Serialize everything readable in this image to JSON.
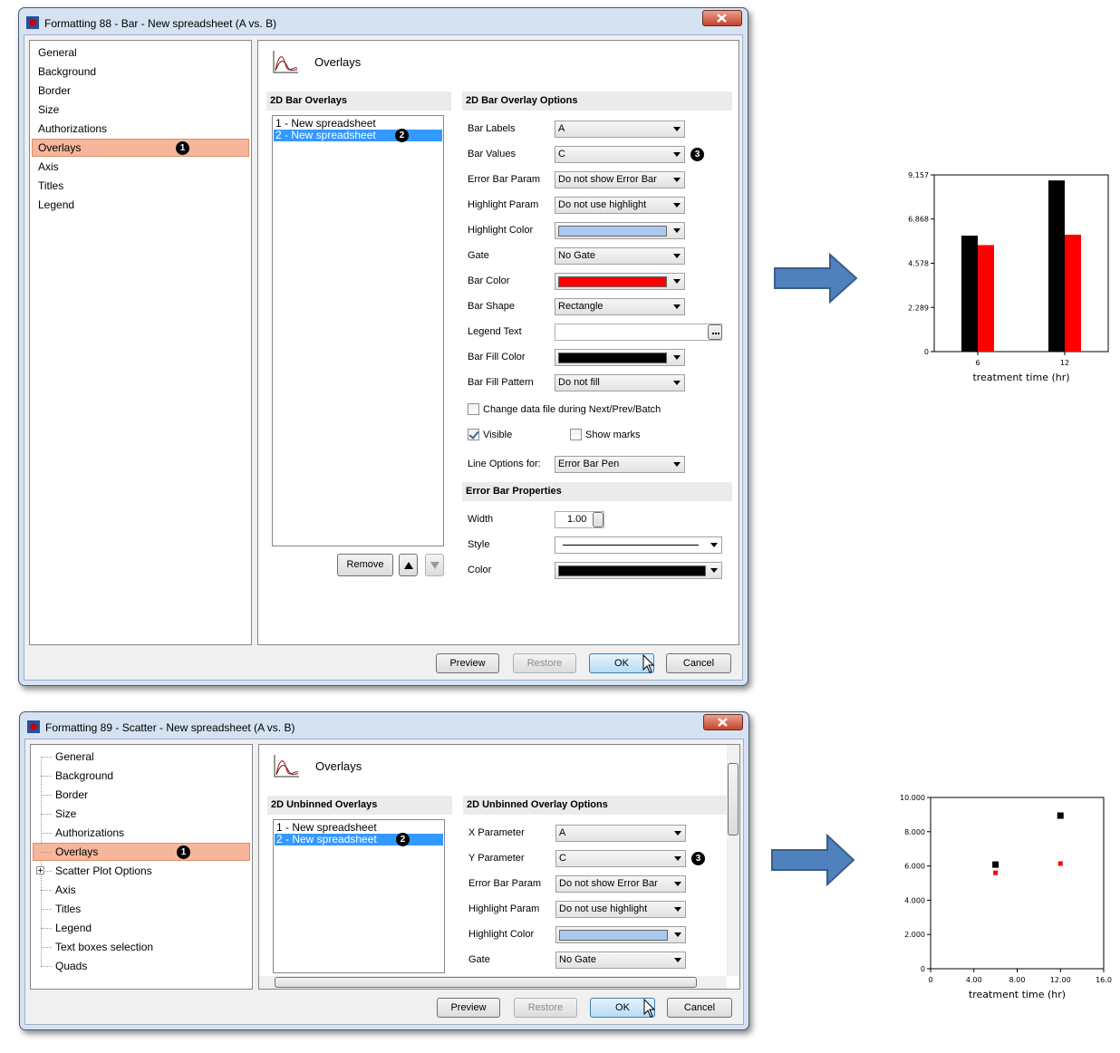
{
  "dialogs": [
    {
      "title": "Formatting 88 - Bar - New spreadsheet (A vs. B)",
      "tree": false,
      "nav": [
        "General",
        "Background",
        "Border",
        "Size",
        "Authorizations",
        "Overlays",
        "Axis",
        "Titles",
        "Legend"
      ],
      "selected_nav": 5,
      "nav_callout": "1",
      "panel_title": "Overlays",
      "list_heading": "2D Bar Overlays",
      "list_items": [
        "1 - New spreadsheet",
        "2 - New spreadsheet"
      ],
      "selected_item": 1,
      "list_callout": "2",
      "options_heading": "2D Bar Overlay Options",
      "options": [
        {
          "label": "Bar Labels",
          "kind": "select",
          "value": "A"
        },
        {
          "label": "Bar Values",
          "kind": "select",
          "value": "C",
          "callout": "3"
        },
        {
          "label": "Error Bar Param",
          "kind": "select",
          "value": "Do not show Error Bar"
        },
        {
          "label": "Highlight Param",
          "kind": "select",
          "value": "Do not use highlight"
        },
        {
          "label": "Highlight Color",
          "kind": "color",
          "color": "#a9c9ef"
        },
        {
          "label": "Gate",
          "kind": "select",
          "value": "No Gate"
        },
        {
          "label": "Bar Color",
          "kind": "color",
          "color": "#ff0000"
        },
        {
          "label": "Bar Shape",
          "kind": "select",
          "value": "Rectangle"
        },
        {
          "label": "Legend Text",
          "kind": "text"
        },
        {
          "label": "Bar Fill Color",
          "kind": "color",
          "color": "#000000"
        },
        {
          "label": "Bar Fill Pattern",
          "kind": "select",
          "value": "Do not fill"
        }
      ],
      "checkboxes": [
        {
          "label": "Change data file during Next/Prev/Batch",
          "checked": false
        },
        {
          "label": "Visible",
          "checked": true
        },
        {
          "label": "Show marks",
          "checked": false
        }
      ],
      "line_options": {
        "label": "Line Options for:",
        "value": "Error Bar Pen"
      },
      "error_bar": {
        "heading": "Error Bar Properties",
        "rows": [
          {
            "label": "Width",
            "kind": "spin",
            "value": "1.00"
          },
          {
            "label": "Style",
            "kind": "line"
          },
          {
            "label": "Color",
            "kind": "color",
            "color": "#000000"
          }
        ]
      },
      "remove": "Remove",
      "buttons": [
        {
          "label": "Preview"
        },
        {
          "label": "Restore",
          "disabled": true
        },
        {
          "label": "OK",
          "default": true
        },
        {
          "label": "Cancel"
        }
      ]
    },
    {
      "title": "Formatting 89 - Scatter - New spreadsheet (A vs. B)",
      "tree": true,
      "nav": [
        "General",
        "Background",
        "Border",
        "Size",
        "Authorizations",
        "Overlays",
        "Scatter Plot Options",
        "Axis",
        "Titles",
        "Legend",
        "Text boxes selection",
        "Quads"
      ],
      "selected_nav": 5,
      "expandable_nav": 6,
      "nav_callout": "1",
      "panel_title": "Overlays",
      "list_heading": "2D Unbinned Overlays",
      "list_items": [
        "1 - New spreadsheet",
        "2 - New spreadsheet"
      ],
      "selected_item": 1,
      "list_callout": "2",
      "options_heading": "2D Unbinned Overlay Options",
      "options": [
        {
          "label": "X Parameter",
          "kind": "select",
          "value": "A"
        },
        {
          "label": "Y Parameter",
          "kind": "select",
          "value": "C",
          "callout": "3"
        },
        {
          "label": "Error Bar Param",
          "kind": "select",
          "value": "Do not show Error Bar"
        },
        {
          "label": "Highlight Param",
          "kind": "select",
          "value": "Do not use highlight"
        },
        {
          "label": "Highlight Color",
          "kind": "color",
          "color": "#a9c9ef"
        },
        {
          "label": "Gate",
          "kind": "select",
          "value": "No Gate"
        }
      ],
      "buttons": [
        {
          "label": "Preview"
        },
        {
          "label": "Restore",
          "disabled": true
        },
        {
          "label": "OK",
          "default": true
        },
        {
          "label": "Cancel"
        }
      ]
    }
  ],
  "chart_data": [
    {
      "type": "bar",
      "categories": [
        "6",
        "12"
      ],
      "x_label": "treatment time (hr)",
      "series": [
        {
          "color": "#000000",
          "values": [
            6.01,
            8.87
          ]
        },
        {
          "color": "#ff0000",
          "values": [
            5.52,
            6.06
          ]
        }
      ],
      "ylim": [
        0,
        9.157
      ],
      "yticks": [
        0,
        2.289,
        4.578,
        6.868,
        9.157
      ]
    },
    {
      "type": "scatter",
      "x_label": "treatment time (hr)",
      "series": [
        {
          "color": "#000000",
          "x": [
            6,
            12
          ],
          "values": [
            6.08,
            8.94
          ]
        },
        {
          "color": "#ff0000",
          "x": [
            6,
            12
          ],
          "values": [
            5.6,
            6.14
          ]
        }
      ],
      "xlim": [
        0,
        16
      ],
      "xticks": [
        0,
        {
          "value": 4,
          "label": "4.00"
        },
        {
          "value": 8,
          "label": "8.00"
        },
        {
          "value": 12,
          "label": "12.00"
        },
        {
          "value": 16,
          "label": "16.0"
        }
      ],
      "ylim": [
        0,
        10
      ],
      "yticks": [
        0,
        {
          "value": 2,
          "label": "2.000"
        },
        {
          "value": 4,
          "label": "4.000"
        },
        {
          "value": 6,
          "label": "6.000"
        },
        {
          "value": 8,
          "label": "8.000"
        },
        {
          "value": 10,
          "label": "10.000"
        }
      ]
    }
  ]
}
